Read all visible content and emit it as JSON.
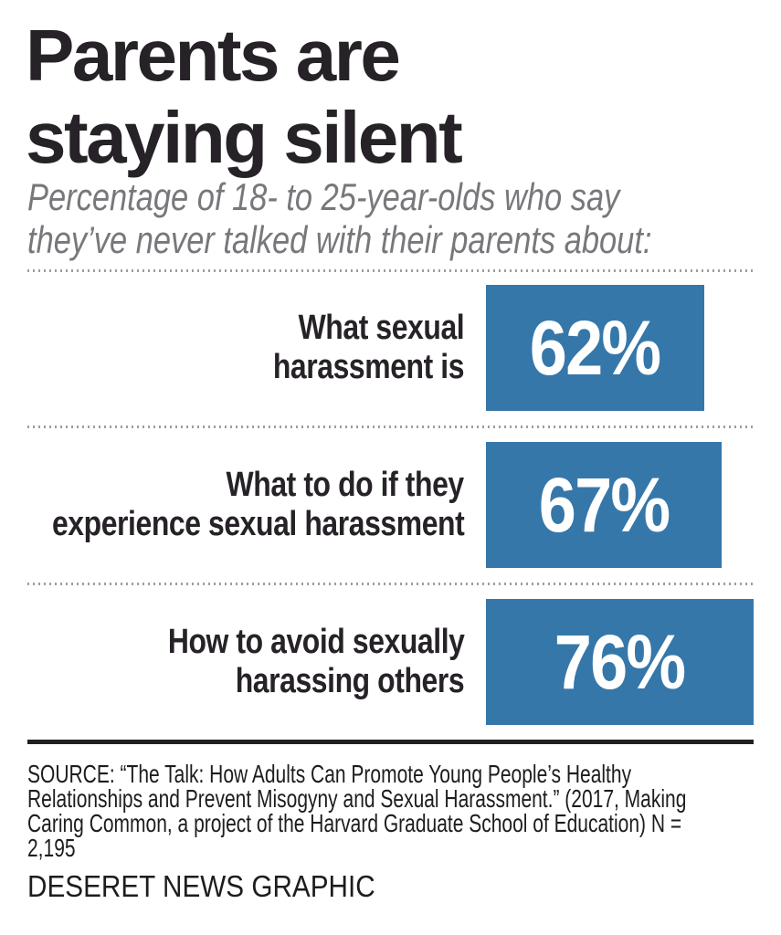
{
  "title": {
    "line1": "Parents are",
    "line2": "staying silent"
  },
  "subtitle": {
    "line1": "Percentage of 18- to 25-year-olds who say",
    "line2": "they’ve never talked with their parents about:"
  },
  "rows": [
    {
      "label_line1": "What sexual",
      "label_line2": "harassment is",
      "value_label": "62%"
    },
    {
      "label_line1": "What to do if they",
      "label_line2": "experience sexual harassment",
      "value_label": "67%"
    },
    {
      "label_line1": "How to avoid sexually",
      "label_line2": "harassing others",
      "value_label": "76%"
    }
  ],
  "source": {
    "lines": [
      "SOURCE: “The Talk: How Adults Can Promote Young People’s Healthy",
      "Relationships and Prevent Misogyny and Sexual Harassment.” (2017, Making",
      "Caring Common, a project of the Harvard Graduate School of Education) N =",
      "2,195"
    ]
  },
  "credit": "DESERET NEWS GRAPHIC",
  "colors": {
    "bar": "#3677aa",
    "title_text": "#262227",
    "subtitle_text": "#77787b",
    "value_text": "#ffffff",
    "dotted_separator": "#9c9ea1",
    "divider": "#231f20",
    "source_text": "#1d1d1f"
  },
  "chart_data": {
    "type": "bar",
    "orientation": "horizontal",
    "title": "Parents are staying silent",
    "subtitle": "Percentage of 18- to 25-year-olds who say they’ve never talked with their parents about:",
    "categories": [
      "What sexual harassment is",
      "What to do if they experience sexual harassment",
      "How to avoid sexually harassing others"
    ],
    "values": [
      62,
      67,
      76
    ],
    "unit": "%",
    "value_labels": [
      "62%",
      "67%",
      "76%"
    ],
    "xlim": [
      0,
      76
    ],
    "grid": false,
    "legend": false,
    "bar_color": "#3677aa",
    "source": "“The Talk: How Adults Can Promote Young People’s Healthy Relationships and Prevent Misogyny and Sexual Harassment.” (2017, Making Caring Common, a project of the Harvard Graduate School of Education) N = 2,195",
    "credit": "DESERET NEWS GRAPHIC"
  }
}
